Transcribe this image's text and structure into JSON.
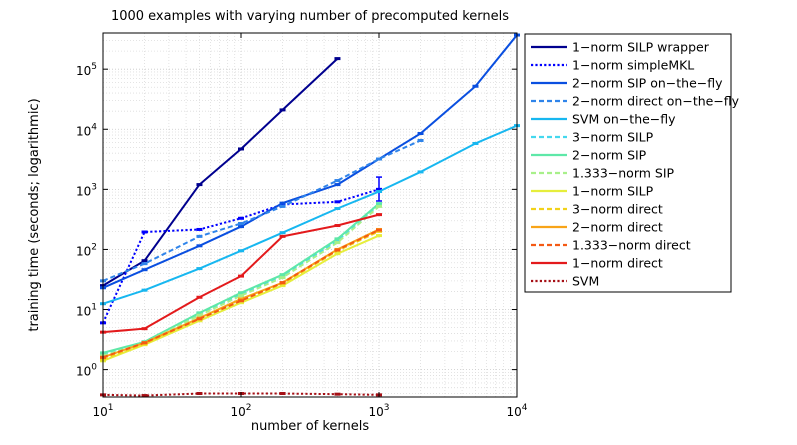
{
  "chart_data": {
    "type": "line",
    "title": "1000 examples with varying number of precomputed kernels",
    "xlabel": "number of kernels",
    "ylabel": "training time (seconds; logarithmic)",
    "xscale": "log",
    "yscale": "log",
    "xlim": [
      10,
      10000
    ],
    "ylim": [
      0.35,
      400000
    ],
    "grid": true,
    "legend_position": "right-outside",
    "x_ticks": [
      {
        "value": 10,
        "base": "10",
        "exp": "1"
      },
      {
        "value": 100,
        "base": "10",
        "exp": "2"
      },
      {
        "value": 1000,
        "base": "10",
        "exp": "3"
      },
      {
        "value": 10000,
        "base": "10",
        "exp": "4"
      }
    ],
    "y_ticks": [
      {
        "value": 1,
        "base": "10",
        "exp": "0"
      },
      {
        "value": 10,
        "base": "10",
        "exp": "1"
      },
      {
        "value": 100,
        "base": "10",
        "exp": "2"
      },
      {
        "value": 1000,
        "base": "10",
        "exp": "3"
      },
      {
        "value": 10000,
        "base": "10",
        "exp": "4"
      },
      {
        "value": 100000,
        "base": "10",
        "exp": "5"
      }
    ],
    "series": [
      {
        "name": "1−norm SILP wrapper",
        "color": "#00008f",
        "dash": "solid",
        "x": [
          10,
          20,
          50,
          100,
          200,
          500
        ],
        "y": [
          25,
          65,
          1200,
          4700,
          21000,
          150000
        ]
      },
      {
        "name": "1−norm simpleMKL",
        "color": "#0000ff",
        "dash": "dotted",
        "x": [
          10,
          20,
          50,
          100,
          200,
          500,
          1000
        ],
        "y": [
          6,
          195,
          215,
          330,
          560,
          620,
          1000
        ],
        "errorbar": {
          "x": 1000,
          "low": 640,
          "high": 1600
        }
      },
      {
        "name": "2−norm SIP on−the−fly",
        "color": "#0a4fe0",
        "dash": "solid",
        "x": [
          10,
          20,
          50,
          100,
          200,
          500,
          1000,
          2000,
          5000,
          10000
        ],
        "y": [
          23,
          46,
          115,
          240,
          590,
          1200,
          3200,
          8500,
          52000,
          370000
        ]
      },
      {
        "name": "2−norm direct on−the−fly",
        "color": "#2f84ea",
        "dash": "dashed",
        "x": [
          10,
          20,
          50,
          100,
          200,
          500,
          1000,
          2000
        ],
        "y": [
          30,
          58,
          165,
          270,
          520,
          1400,
          3200,
          6500
        ]
      },
      {
        "name": "SVM on−the−fly",
        "color": "#17b7f0",
        "dash": "solid",
        "x": [
          10,
          20,
          50,
          100,
          200,
          500,
          1000,
          2000,
          5000,
          10000
        ],
        "y": [
          12.5,
          21,
          48,
          95,
          190,
          480,
          920,
          1950,
          5800,
          11500
        ]
      },
      {
        "name": "3−norm SILP",
        "color": "#44d8ee",
        "dash": "dashed",
        "x": [
          10,
          20,
          50,
          100,
          200,
          500,
          1000
        ],
        "y": [
          1.8,
          2.9,
          8.5,
          18,
          37,
          140,
          560
        ]
      },
      {
        "name": "2−norm SIP",
        "color": "#5ee8a8",
        "dash": "solid",
        "x": [
          10,
          20,
          50,
          100,
          200,
          500,
          1000
        ],
        "y": [
          1.9,
          2.9,
          8.8,
          19,
          38,
          150,
          580
        ]
      },
      {
        "name": "1.333−norm SIP",
        "color": "#a8f08a",
        "dash": "dashed",
        "x": [
          10,
          20,
          50,
          100,
          200,
          500,
          1000
        ],
        "y": [
          1.7,
          2.8,
          8,
          17,
          34,
          130,
          520
        ]
      },
      {
        "name": "1−norm SILP",
        "color": "#e6ee3c",
        "dash": "solid",
        "x": [
          10,
          20,
          50,
          100,
          200,
          500,
          1000
        ],
        "y": [
          1.4,
          2.6,
          6.5,
          13,
          25,
          85,
          170
        ]
      },
      {
        "name": "3−norm direct",
        "color": "#f2d21a",
        "dash": "dashed",
        "x": [
          10,
          20,
          50,
          100,
          200,
          500,
          1000
        ],
        "y": [
          1.5,
          2.7,
          7,
          14,
          27,
          95,
          200
        ]
      },
      {
        "name": "2−norm direct",
        "color": "#f8a418",
        "dash": "solid",
        "x": [
          10,
          20,
          50,
          100,
          200,
          500,
          1000
        ],
        "y": [
          1.6,
          2.8,
          7.2,
          15,
          28,
          100,
          215
        ]
      },
      {
        "name": "1.333−norm direct",
        "color": "#f45a14",
        "dash": "dashed",
        "x": [
          10,
          20,
          50,
          100,
          200,
          500,
          1000
        ],
        "y": [
          1.6,
          2.8,
          7,
          14,
          28,
          98,
          210
        ]
      },
      {
        "name": "1−norm direct",
        "color": "#e31a1c",
        "dash": "solid",
        "x": [
          10,
          20,
          50,
          100,
          200,
          500,
          1000
        ],
        "y": [
          4.2,
          4.8,
          16,
          36,
          165,
          250,
          380
        ]
      },
      {
        "name": "SVM",
        "color": "#a50f15",
        "dash": "dotted",
        "x": [
          10,
          20,
          50,
          100,
          200,
          500,
          1000
        ],
        "y": [
          0.38,
          0.37,
          0.4,
          0.4,
          0.4,
          0.39,
          0.38
        ]
      }
    ]
  }
}
